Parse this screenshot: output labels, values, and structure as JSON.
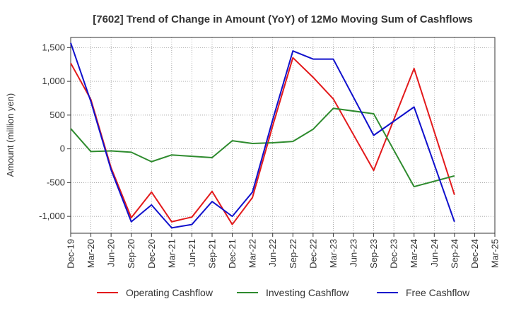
{
  "chart_data": {
    "type": "line",
    "title": "[7602]  Trend of Change in Amount (YoY) of 12Mo Moving Sum of Cashflows",
    "xlabel": "",
    "ylabel": "Amount (million yen)",
    "ylim": [
      -1250,
      1650
    ],
    "yticks": [
      -1000,
      -500,
      0,
      500,
      1000,
      1500
    ],
    "ytick_labels": [
      "-1,000",
      "-500",
      "0",
      "500",
      "1,000",
      "1,500"
    ],
    "categories": [
      "Dec-19",
      "Mar-20",
      "Jun-20",
      "Sep-20",
      "Dec-20",
      "Mar-21",
      "Jun-21",
      "Sep-21",
      "Dec-21",
      "Mar-22",
      "Jun-22",
      "Sep-22",
      "Dec-22",
      "Mar-23",
      "Jun-23",
      "Sep-23",
      "Dec-23",
      "Mar-24",
      "Jun-24",
      "Sep-24",
      "Dec-24",
      "Mar-25"
    ],
    "grid": true,
    "legend_position": "bottom",
    "series": [
      {
        "name": "Operating Cashflow",
        "color": "#e31a1c",
        "values": [
          1270,
          730,
          -280,
          -1020,
          -640,
          -1080,
          -1010,
          -630,
          -1120,
          -720,
          340,
          1350,
          1060,
          740,
          null,
          -320,
          null,
          1190,
          null,
          -680,
          null,
          null
        ]
      },
      {
        "name": "Investing Cashflow",
        "color": "#2e8b2e",
        "values": [
          300,
          -40,
          -30,
          -50,
          -190,
          -90,
          -110,
          -130,
          120,
          80,
          90,
          110,
          290,
          600,
          null,
          520,
          null,
          -560,
          null,
          -400,
          null,
          null
        ]
      },
      {
        "name": "Free Cashflow",
        "color": "#1010cc",
        "values": [
          1570,
          700,
          -310,
          -1080,
          -830,
          -1170,
          -1120,
          -780,
          -1000,
          -640,
          430,
          1450,
          1330,
          1330,
          null,
          200,
          null,
          620,
          null,
          -1080,
          null,
          null
        ]
      }
    ]
  }
}
